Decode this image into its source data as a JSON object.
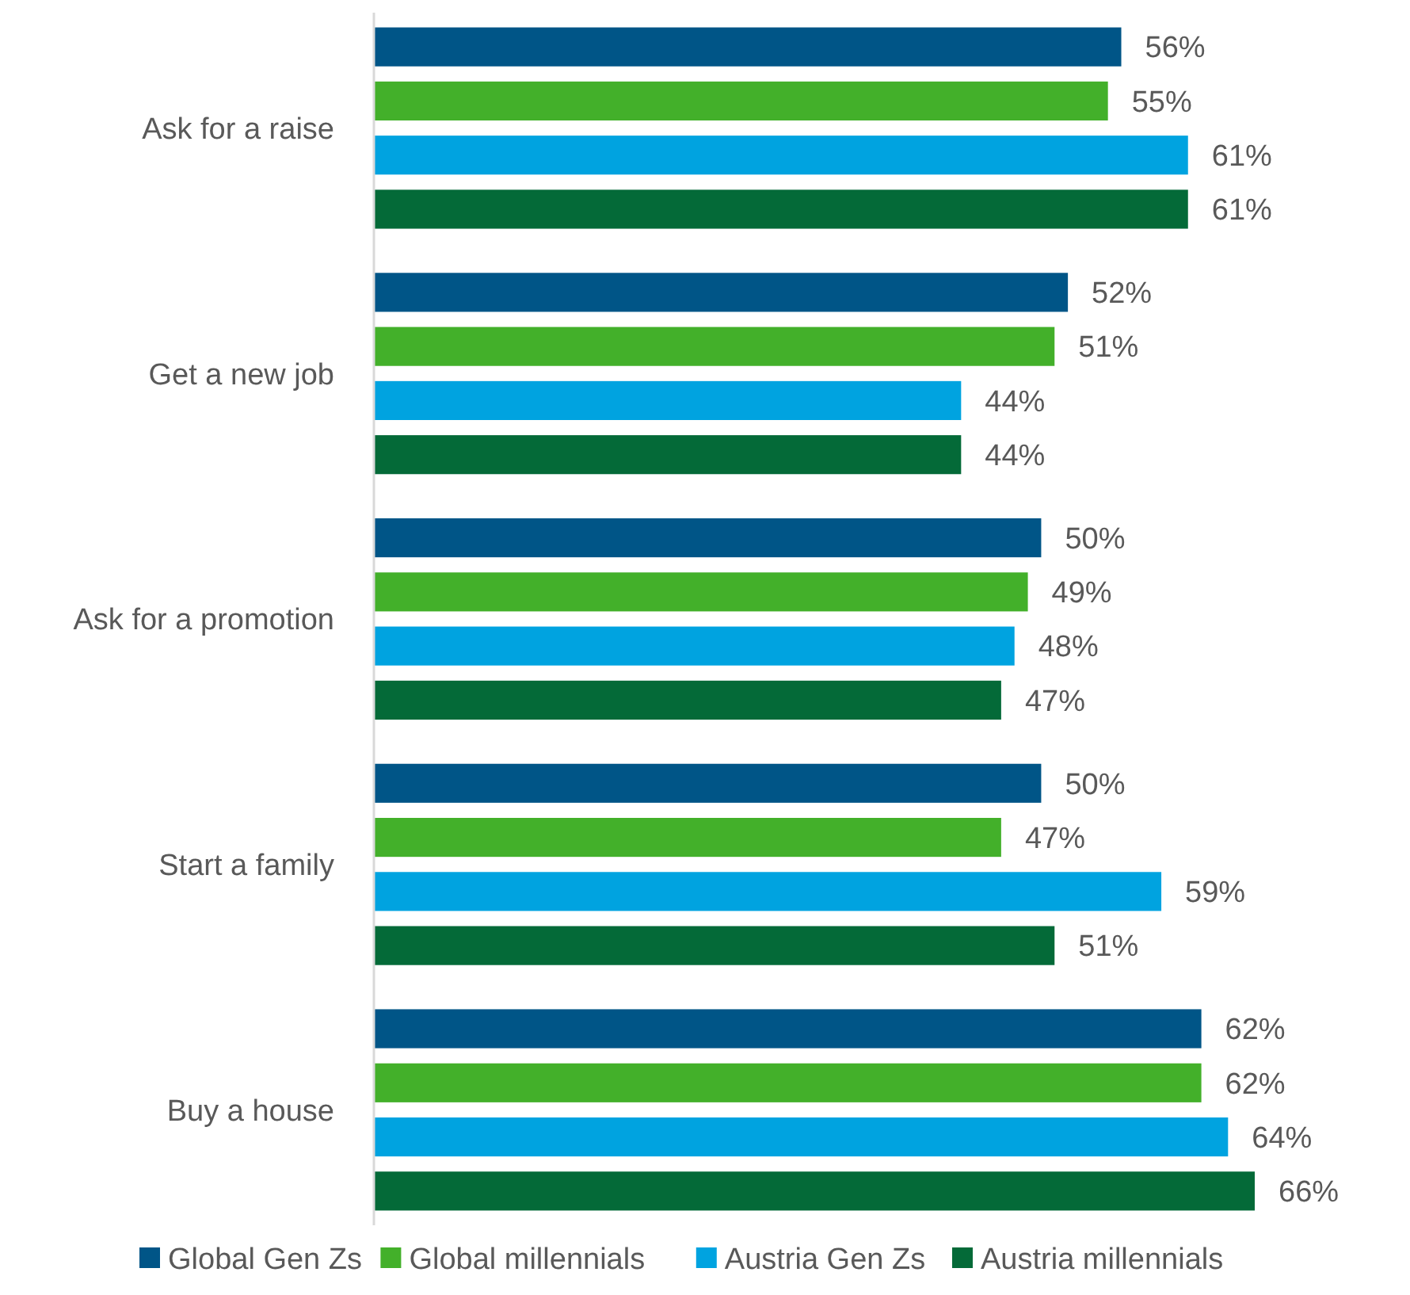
{
  "chart_data": {
    "type": "bar",
    "orientation": "horizontal",
    "categories": [
      "Ask for a raise",
      "Get a new job",
      "Ask for a promotion",
      "Start a family",
      "Buy a house"
    ],
    "series": [
      {
        "name": "Global Gen Zs",
        "color": "#005587",
        "values": [
          56,
          52,
          50,
          50,
          62
        ],
        "value_labels": [
          "56%",
          "52%",
          "50%",
          "50%",
          "62%"
        ]
      },
      {
        "name": "Global millennials",
        "color": "#43b02a",
        "values": [
          55,
          51,
          49,
          47,
          62
        ],
        "value_labels": [
          "55%",
          "51%",
          "49%",
          "47%",
          "62%"
        ]
      },
      {
        "name": "Austria Gen Zs",
        "color": "#00a3e0",
        "values": [
          61,
          44,
          48,
          59,
          64
        ],
        "value_labels": [
          "61%",
          "44%",
          "48%",
          "59%",
          "64%"
        ]
      },
      {
        "name": "Austria millennials",
        "color": "#046a38",
        "values": [
          61,
          44,
          47,
          51,
          66
        ],
        "value_labels": [
          "61%",
          "44%",
          "47%",
          "51%",
          "66%"
        ]
      }
    ],
    "legend": "bottom"
  }
}
